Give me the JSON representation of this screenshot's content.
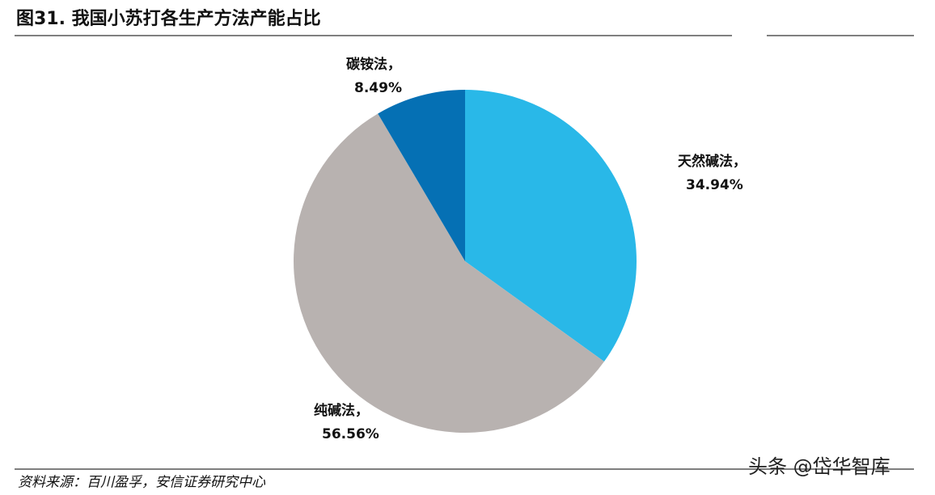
{
  "chart_data": {
    "type": "pie",
    "title": "图31. 我国小苏打各生产方法产能占比",
    "categories": [
      "天然碱法，",
      "纯碱法，",
      "碳铵法，"
    ],
    "values": [
      34.94,
      56.56,
      8.49
    ],
    "value_labels": [
      "34.94%",
      "56.56%",
      "8.49%"
    ],
    "colors": [
      "#29b8e8",
      "#b8b2b0",
      "#0570b4"
    ],
    "source": "资料来源：百川盈孚，安信证券研究中心",
    "watermark": "头条 @岱华智库"
  }
}
